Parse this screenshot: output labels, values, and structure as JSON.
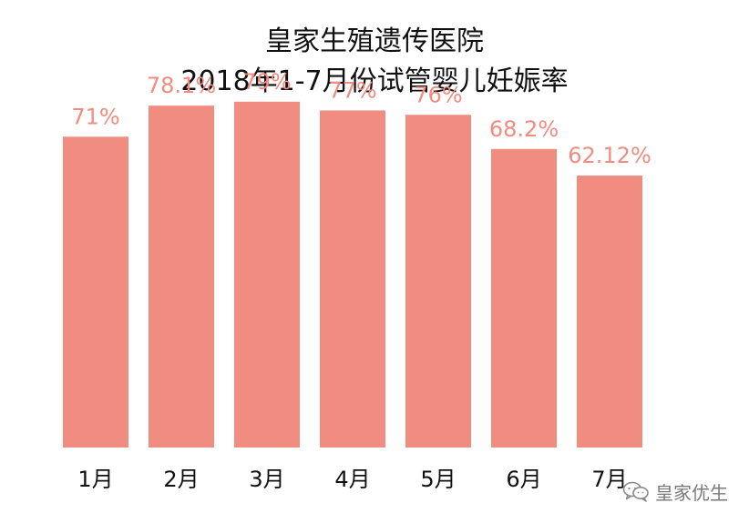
{
  "chart_data": {
    "type": "bar",
    "title": "皇家生殖遗传医院",
    "subtitle": "2018年1-7月份试管婴儿妊娠率",
    "categories": [
      "1月",
      "2月",
      "3月",
      "4月",
      "5月",
      "6月",
      "7月"
    ],
    "values": [
      71,
      78.1,
      79,
      77,
      76,
      68.2,
      62.12
    ],
    "value_labels": [
      "71%",
      "78.1%",
      "79%",
      "77%",
      "76%",
      "68.2%",
      "62.12%"
    ],
    "ylim": [
      0,
      80
    ],
    "unit": "%",
    "grid": false,
    "legend": "none",
    "bar_color": "#f08c80",
    "label_color": "#f08c80"
  },
  "watermark": {
    "icon": "wechat-logo-icon",
    "text": "皇家优生",
    "color": "#7a7a7a"
  }
}
